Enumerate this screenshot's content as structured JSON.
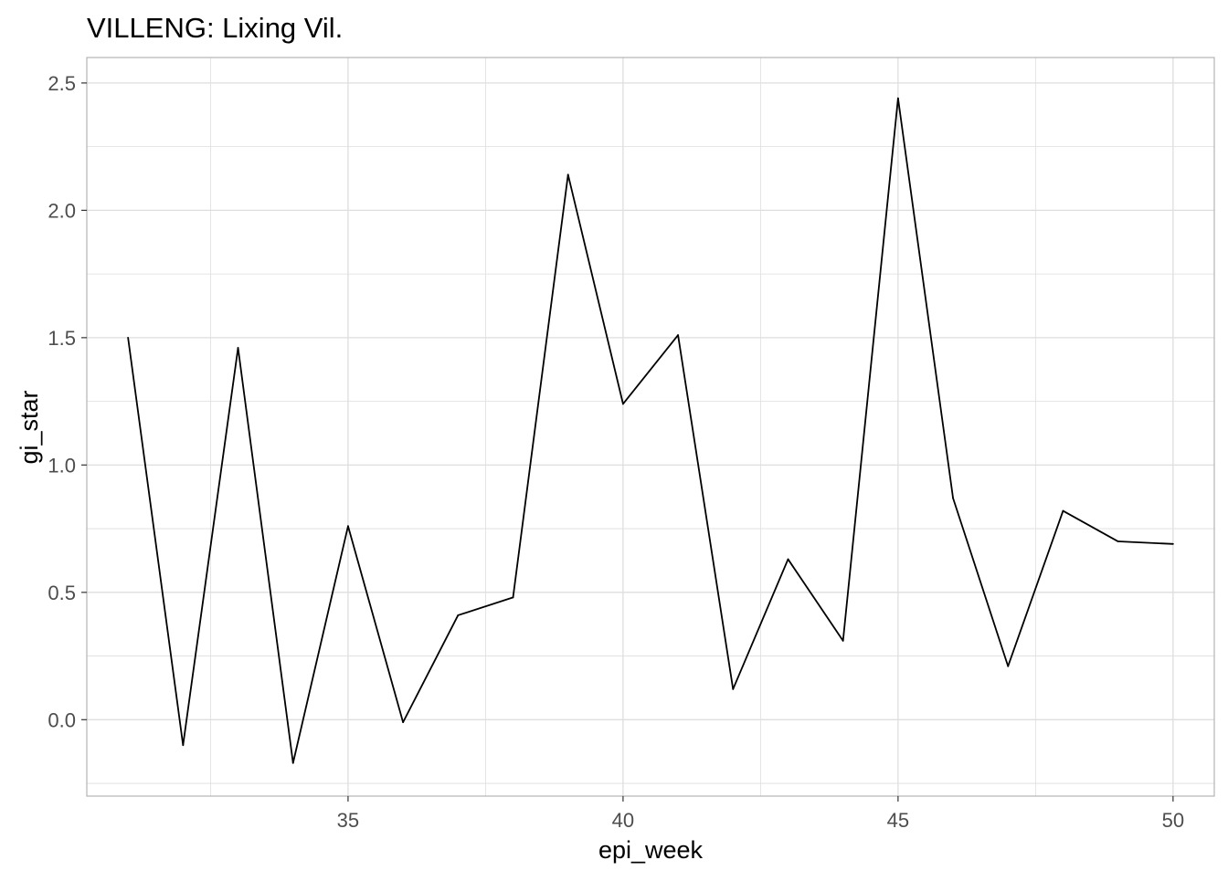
{
  "chart_data": {
    "type": "line",
    "title": "VILLENG: Lixing Vil.",
    "xlabel": "epi_week",
    "ylabel": "gi_star",
    "xlim": [
      30.25,
      50.75
    ],
    "ylim": [
      -0.3,
      2.6
    ],
    "x_ticks": [
      35,
      40,
      45,
      50
    ],
    "x_tick_labels": [
      "35",
      "40",
      "45",
      "50"
    ],
    "y_ticks": [
      0.0,
      0.5,
      1.0,
      1.5,
      2.0,
      2.5
    ],
    "y_tick_labels": [
      "0.0",
      "0.5",
      "1.0",
      "1.5",
      "2.0",
      "2.5"
    ],
    "grid": true,
    "line_color": "#000000",
    "grid_color": "#dedede",
    "border_color": "#b3b3b3",
    "x": [
      31,
      32,
      33,
      34,
      35,
      36,
      37,
      38,
      39,
      40,
      41,
      42,
      43,
      44,
      45,
      46,
      47,
      48,
      49,
      50
    ],
    "y": [
      1.5,
      -0.1,
      1.46,
      -0.17,
      0.76,
      -0.01,
      0.41,
      0.48,
      2.14,
      1.24,
      1.51,
      0.12,
      0.63,
      0.31,
      2.44,
      0.87,
      0.21,
      0.82,
      0.7,
      0.69
    ]
  }
}
